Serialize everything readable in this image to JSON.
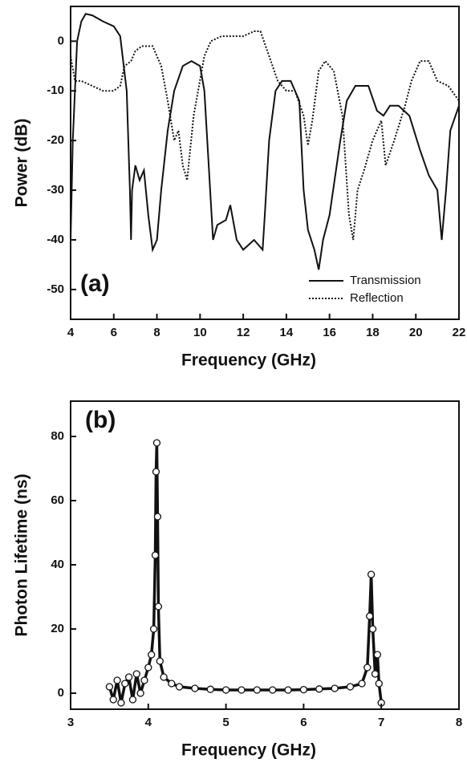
{
  "chart_data": [
    {
      "type": "line",
      "annotation": "(a)",
      "x_label": "Frequency (GHz)",
      "y_label": "Power (dB)",
      "xlim": [
        4,
        22
      ],
      "xticks": [
        4,
        6,
        8,
        10,
        12,
        14,
        16,
        18,
        20,
        22
      ],
      "ylim": [
        -56,
        7
      ],
      "yticks": [
        -50,
        -40,
        -30,
        -20,
        -10,
        0
      ],
      "legend": "lower right",
      "series": [
        {
          "name": "Transmission",
          "color": "#111111",
          "dash": "solid",
          "x": [
            4.0,
            4.1,
            4.3,
            4.5,
            4.7,
            5.0,
            5.5,
            6.0,
            6.3,
            6.6,
            6.75,
            6.8,
            6.85,
            7.0,
            7.2,
            7.4,
            7.6,
            7.8,
            8.0,
            8.2,
            8.5,
            8.8,
            9.2,
            9.6,
            10.0,
            10.2,
            10.4,
            10.6,
            10.8,
            11.2,
            11.4,
            11.7,
            12.0,
            12.5,
            12.9,
            13.0,
            13.2,
            13.5,
            13.8,
            14.2,
            14.6,
            14.8,
            15.0,
            15.3,
            15.5,
            15.7,
            16.0,
            16.5,
            16.8,
            17.2,
            17.8,
            18.2,
            18.5,
            18.8,
            19.2,
            19.7,
            20.2,
            20.6,
            21.0,
            21.2,
            21.4,
            21.6,
            22.0
          ],
          "values": [
            -40,
            -20,
            0,
            4,
            5.5,
            5.2,
            4,
            3,
            1,
            -10,
            -30,
            -40,
            -30,
            -25,
            -28,
            -26,
            -35,
            -42,
            -40,
            -30,
            -18,
            -10,
            -5,
            -4,
            -5,
            -10,
            -25,
            -40,
            -37,
            -36,
            -33,
            -40,
            -42,
            -40,
            -42,
            -35,
            -20,
            -10,
            -8,
            -8,
            -12,
            -30,
            -38,
            -42,
            -46,
            -40,
            -35,
            -20,
            -12,
            -9,
            -9,
            -14,
            -15,
            -13,
            -13,
            -15,
            -22,
            -27,
            -30,
            -40,
            -30,
            -18,
            -13
          ]
        },
        {
          "name": "Reflection",
          "color": "#111111",
          "dash": "dotted",
          "x": [
            4.0,
            4.2,
            4.5,
            5.0,
            5.5,
            6.0,
            6.3,
            6.5,
            6.8,
            7.0,
            7.3,
            7.8,
            8.2,
            8.5,
            8.8,
            9.0,
            9.2,
            9.4,
            9.7,
            10.2,
            10.5,
            11.0,
            11.5,
            12.0,
            12.5,
            12.8,
            13.2,
            13.6,
            14.0,
            14.4,
            14.8,
            15.0,
            15.2,
            15.5,
            15.8,
            16.2,
            16.6,
            16.9,
            17.1,
            17.3,
            17.6,
            18.0,
            18.4,
            18.6,
            19.0,
            19.5,
            19.8,
            20.2,
            20.6,
            21.0,
            21.5,
            22.0
          ],
          "values": [
            -3,
            -8,
            -8,
            -9,
            -10,
            -10,
            -9,
            -5,
            -4,
            -2,
            -1,
            -1,
            -5,
            -12,
            -20,
            -18,
            -25,
            -28,
            -15,
            -3,
            0,
            1,
            1,
            1,
            2,
            2,
            -3,
            -8,
            -10,
            -10,
            -15,
            -21,
            -16,
            -6,
            -4,
            -6,
            -15,
            -35,
            -40,
            -30,
            -26,
            -20,
            -16,
            -25,
            -20,
            -13,
            -8,
            -4,
            -4,
            -8,
            -9,
            -12
          ]
        }
      ]
    },
    {
      "type": "line",
      "markers": true,
      "annotation": "(b)",
      "x_label": "Frequency (GHz)",
      "y_label": "Photon Lifetime (ns)",
      "xlim": [
        3,
        8
      ],
      "xticks": [
        3,
        4,
        5,
        6,
        7,
        8
      ],
      "ylim": [
        -5,
        91
      ],
      "yticks": [
        0,
        20,
        40,
        60,
        80
      ],
      "series": [
        {
          "color": "#111111",
          "dash": "solid",
          "x": [
            3.5,
            3.55,
            3.6,
            3.65,
            3.7,
            3.75,
            3.8,
            3.85,
            3.9,
            3.95,
            4.0,
            4.04,
            4.07,
            4.09,
            4.1,
            4.11,
            4.12,
            4.13,
            4.15,
            4.2,
            4.3,
            4.4,
            4.6,
            4.8,
            5.0,
            5.2,
            5.4,
            5.6,
            5.8,
            6.0,
            6.2,
            6.4,
            6.6,
            6.75,
            6.82,
            6.85,
            6.87,
            6.89,
            6.92,
            6.95,
            6.97,
            7.0
          ],
          "values": [
            2,
            -2,
            4,
            -3,
            3,
            5,
            -2,
            6,
            0,
            4,
            8,
            12,
            20,
            43,
            69,
            78,
            55,
            27,
            10,
            5,
            3,
            2,
            1.5,
            1.2,
            1,
            1,
            1,
            1,
            1,
            1.1,
            1.3,
            1.5,
            2,
            3,
            8,
            24,
            37,
            20,
            6,
            12,
            3,
            -3
          ]
        }
      ]
    }
  ]
}
